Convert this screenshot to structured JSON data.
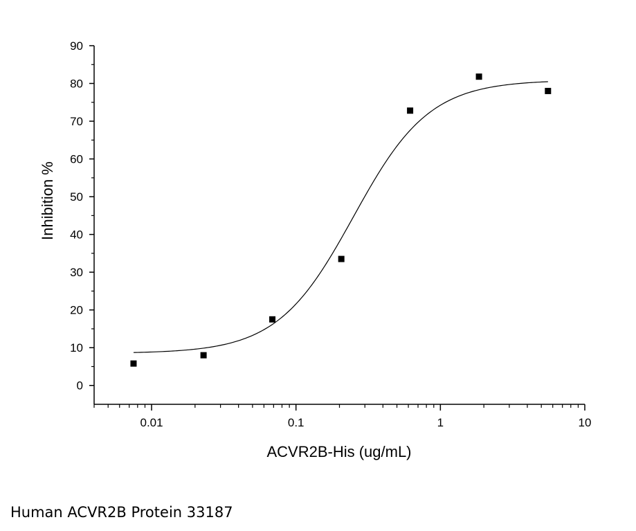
{
  "caption": "Human ACVR2B Protein 33187",
  "chart_data": {
    "type": "scatter",
    "title": "",
    "xlabel": "ACVR2B-His (ug/mL)",
    "ylabel": "Inhibition %",
    "x_scale": "log",
    "xlim": [
      0.004,
      10
    ],
    "ylim": [
      -5,
      90
    ],
    "x_ticks": [
      0.01,
      0.1,
      1,
      10
    ],
    "x_tick_labels": [
      "0.01",
      "0.1",
      "1",
      "10"
    ],
    "y_ticks": [
      0,
      10,
      20,
      30,
      40,
      50,
      60,
      70,
      80,
      90
    ],
    "y_tick_labels": [
      "0",
      "10",
      "20",
      "30",
      "40",
      "50",
      "60",
      "70",
      "80",
      "90"
    ],
    "grid": false,
    "legend": "none",
    "series": [
      {
        "marker": "square",
        "color": "#000000",
        "x": [
          0.0075,
          0.0229,
          0.0686,
          0.206,
          0.617,
          1.85,
          5.56
        ],
        "y": [
          5.8,
          8.0,
          17.5,
          33.5,
          72.8,
          81.8,
          78.0
        ]
      }
    ],
    "fit_curve": {
      "type": "four-parameter logistic",
      "color": "#000000",
      "x_range": [
        0.0075,
        5.56
      ],
      "bottom": 8.5,
      "top": 80.9,
      "ec50": 0.25,
      "hill": 1.65
    }
  }
}
